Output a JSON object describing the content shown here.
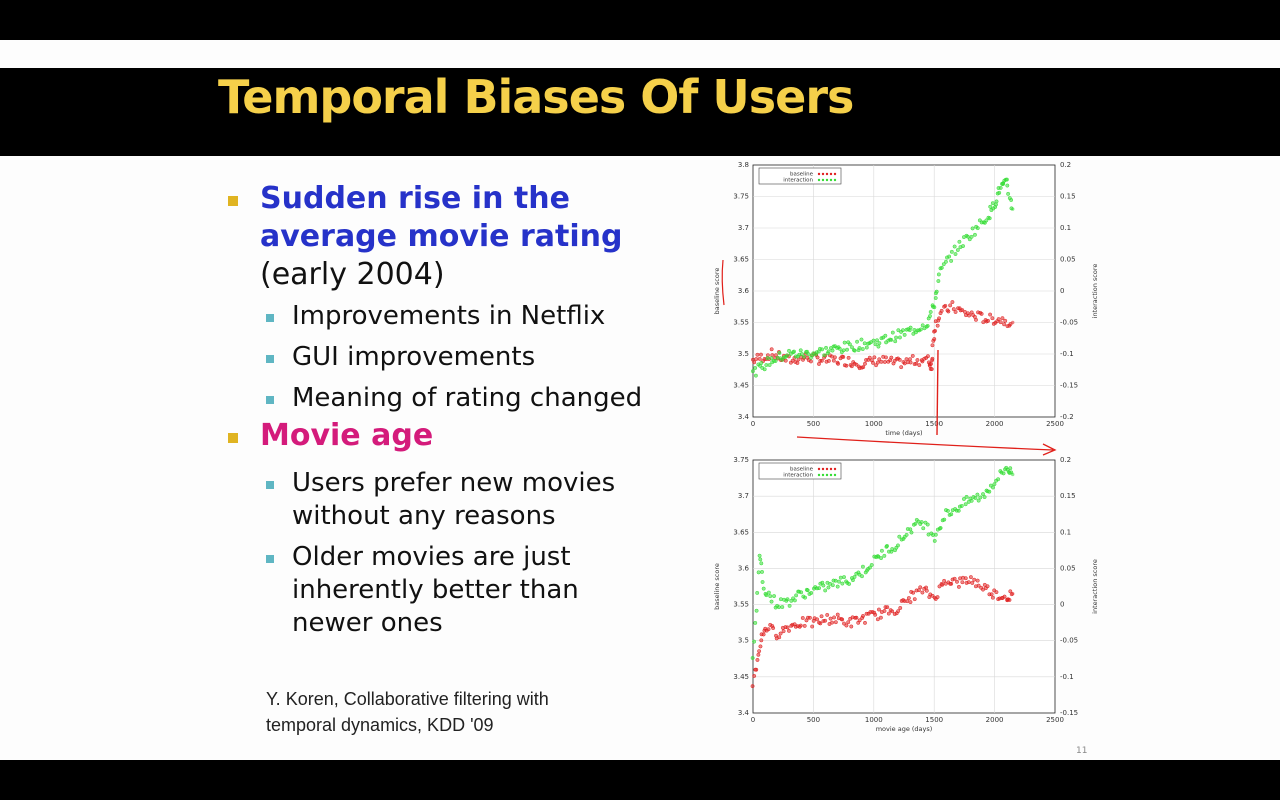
{
  "slide": {
    "title": "Temporal Biases Of Users",
    "bullets": {
      "b1_line1": "Sudden rise in the",
      "b1_line2": "average movie rating",
      "b1_line3": "(early 2004)",
      "b1_sub1": "Improvements in Netflix",
      "b1_sub2": "GUI improvements",
      "b1_sub3": "Meaning of rating changed",
      "b2": "Movie age",
      "b2_sub1_line1": "Users prefer new movies",
      "b2_sub1_line2": "without any reasons",
      "b2_sub2_line1": "Older movies are just",
      "b2_sub2_line2": "inherently better than",
      "b2_sub2_line3": "newer ones"
    },
    "citation_line1": "Y. Koren, Collaborative filtering with",
    "citation_line2": "temporal dynamics, KDD '09",
    "page_number": "11"
  },
  "colors": {
    "baseline": "#e02020",
    "interaction": "#33dd33",
    "title": "#f5d04a",
    "annotation": "#e0201a"
  },
  "chart_data": [
    {
      "type": "scatter",
      "xlabel": "time (days)",
      "ylabel": "baseline score",
      "y2label": "interaction score",
      "xlim": [
        0,
        2500
      ],
      "ylim": [
        3.4,
        3.8
      ],
      "y2lim": [
        -0.2,
        0.2
      ],
      "xticks": [
        "0",
        "500",
        "1000",
        "1500",
        "2000",
        "2500"
      ],
      "yticks": [
        "3.4",
        "3.45",
        "3.5",
        "3.55",
        "3.6",
        "3.65",
        "3.7",
        "3.75",
        "3.8"
      ],
      "y2ticks": [
        "-0.2",
        "-0.15",
        "-0.1",
        "-0.05",
        "0",
        "0.05",
        "0.1",
        "0.15",
        "0.2"
      ],
      "legend": [
        "baseline",
        "interaction"
      ],
      "legend_position": "top-left",
      "grid": true,
      "series": [
        {
          "name": "baseline",
          "axis": "left",
          "x": [
            0,
            150,
            300,
            450,
            600,
            750,
            900,
            1050,
            1200,
            1350,
            1450,
            1480,
            1500,
            1550,
            1650,
            1750,
            1850,
            1950,
            2050,
            2150
          ],
          "y": [
            3.49,
            3.5,
            3.49,
            3.495,
            3.49,
            3.49,
            3.485,
            3.49,
            3.485,
            3.49,
            3.49,
            3.48,
            3.54,
            3.565,
            3.575,
            3.565,
            3.56,
            3.555,
            3.555,
            3.55
          ]
        },
        {
          "name": "interaction",
          "axis": "left",
          "x": [
            0,
            150,
            300,
            450,
            600,
            750,
            900,
            1050,
            1200,
            1350,
            1450,
            1500,
            1550,
            1650,
            1750,
            1850,
            1950,
            2000,
            2050,
            2100,
            2150
          ],
          "y": [
            3.47,
            3.49,
            3.5,
            3.5,
            3.505,
            3.51,
            3.515,
            3.52,
            3.53,
            3.54,
            3.55,
            3.58,
            3.63,
            3.66,
            3.68,
            3.7,
            3.72,
            3.74,
            3.765,
            3.77,
            3.73
          ]
        }
      ]
    },
    {
      "type": "scatter",
      "xlabel": "movie age (days)",
      "ylabel": "baseline score",
      "y2label": "interaction score",
      "xlim": [
        0,
        2500
      ],
      "ylim": [
        3.4,
        3.75
      ],
      "y2lim": [
        -0.15,
        0.2
      ],
      "xticks": [
        "0",
        "500",
        "1000",
        "1500",
        "2000",
        "2500"
      ],
      "yticks": [
        "3.4",
        "3.45",
        "3.5",
        "3.55",
        "3.6",
        "3.65",
        "3.7",
        "3.75"
      ],
      "y2ticks": [
        "-0.15",
        "-0.1",
        "-0.05",
        "0",
        "0.05",
        "0.1",
        "0.15",
        "0.2"
      ],
      "legend": [
        "baseline",
        "interaction"
      ],
      "legend_position": "top-left",
      "grid": true,
      "series": [
        {
          "name": "baseline",
          "axis": "left",
          "x": [
            0,
            50,
            100,
            200,
            300,
            400,
            500,
            600,
            700,
            800,
            900,
            1000,
            1100,
            1200,
            1300,
            1400,
            1500,
            1600,
            1700,
            1800,
            1900,
            2000,
            2100,
            2150
          ],
          "y": [
            3.44,
            3.49,
            3.52,
            3.51,
            3.52,
            3.525,
            3.525,
            3.53,
            3.53,
            3.525,
            3.53,
            3.535,
            3.54,
            3.545,
            3.56,
            3.57,
            3.56,
            3.585,
            3.58,
            3.585,
            3.575,
            3.565,
            3.56,
            3.565
          ]
        },
        {
          "name": "interaction",
          "axis": "left",
          "x": [
            0,
            50,
            100,
            200,
            300,
            400,
            500,
            600,
            700,
            800,
            900,
            1000,
            1100,
            1200,
            1300,
            1400,
            1500,
            1600,
            1700,
            1800,
            1900,
            2000,
            2100,
            2150
          ],
          "y": [
            3.47,
            3.62,
            3.57,
            3.55,
            3.555,
            3.565,
            3.57,
            3.575,
            3.58,
            3.585,
            3.595,
            3.61,
            3.625,
            3.635,
            3.655,
            3.665,
            3.645,
            3.675,
            3.685,
            3.695,
            3.7,
            3.72,
            3.74,
            3.73
          ]
        }
      ]
    }
  ]
}
